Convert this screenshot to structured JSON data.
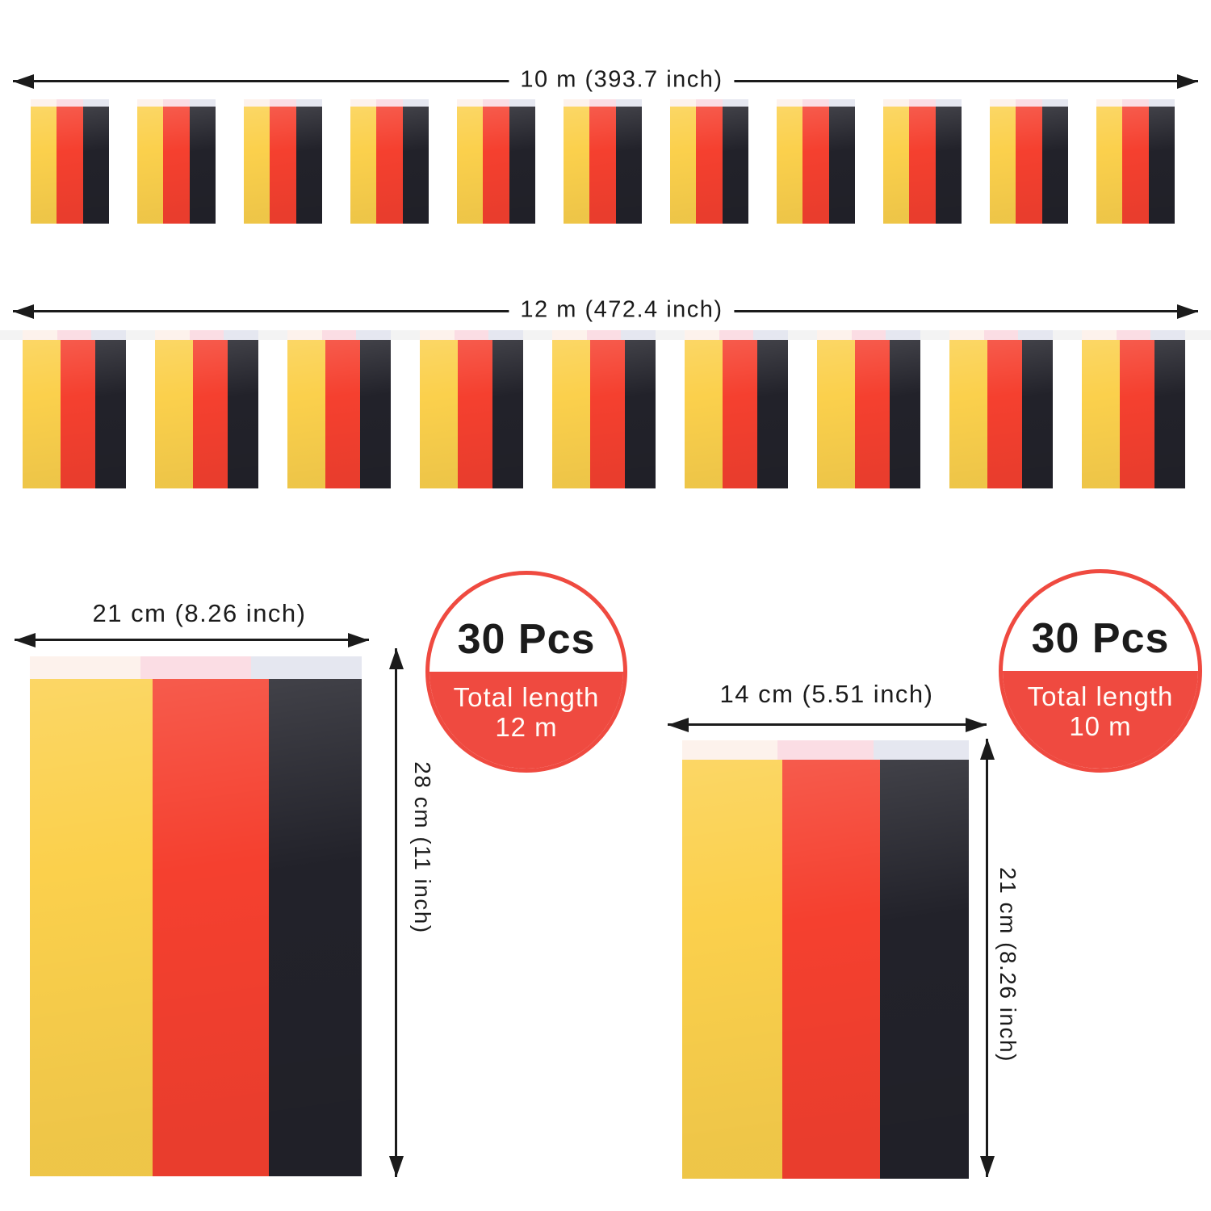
{
  "rows": [
    {
      "length_label": "10 m (393.7 inch)",
      "flag_count": 11
    },
    {
      "length_label": "12 m (472.4 inch)",
      "flag_count": 9
    }
  ],
  "badges": [
    {
      "pieces": "30 Pcs",
      "line1": "Total length",
      "line2": "12 m"
    },
    {
      "pieces": "30 Pcs",
      "line1": "Total length",
      "line2": "10 m"
    }
  ],
  "details": [
    {
      "width_label": "21 cm (8.26 inch)",
      "height_label": "28 cm (11 inch)"
    },
    {
      "width_label": "14 cm (5.51 inch)",
      "height_label": "21 cm (8.26 inch)"
    }
  ],
  "flag": {
    "stripe_colors": [
      "#fbd04c",
      "#f5402f",
      "#22222a"
    ],
    "header_tints": [
      "#fdf2ec",
      "#fbdde4",
      "#e5e7f0"
    ],
    "string_color": "#f3f3f3"
  },
  "colors": {
    "arrow": "#1b1b1b",
    "ink": "#1b1b1b",
    "badge_red": "#ef4a40",
    "badge_text_light": "#fffdf9"
  }
}
